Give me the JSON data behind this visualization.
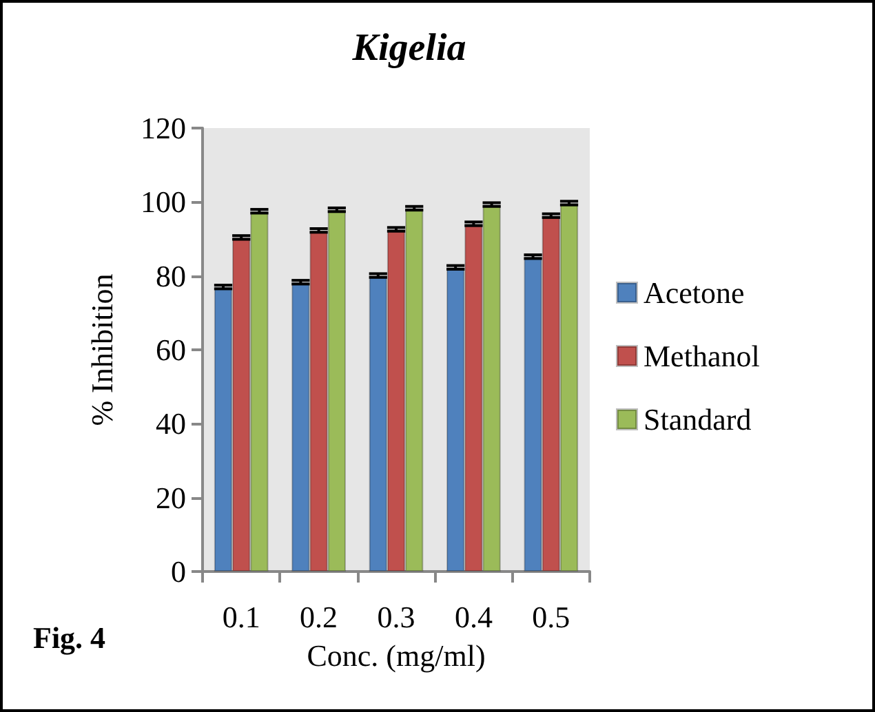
{
  "chart_data": {
    "type": "bar",
    "title": "Kigelia",
    "xlabel": "Conc. (mg/ml)",
    "ylabel": "% Inhibition",
    "annotations": [
      "Fig. 4"
    ],
    "categories": [
      "0.1",
      "0.2",
      "0.3",
      "0.4",
      "0.5"
    ],
    "series": [
      {
        "name": "Acetone",
        "color": "#4f81bd",
        "values": [
          77,
          78.3,
          80.1,
          82.3,
          85.2
        ],
        "errors": [
          0.5,
          0.5,
          0.5,
          0.5,
          0.5
        ]
      },
      {
        "name": "Methanol",
        "color": "#c0504d",
        "values": [
          90.4,
          92.3,
          92.6,
          94.1,
          96.3
        ],
        "errors": [
          0.5,
          0.5,
          0.5,
          0.5,
          0.5
        ]
      },
      {
        "name": "Standard",
        "color": "#9bbb59",
        "values": [
          97.5,
          97.9,
          98.3,
          99.3,
          99.7
        ],
        "errors": [
          0.5,
          0.5,
          0.5,
          0.5,
          0.5
        ]
      }
    ],
    "ylim": [
      0,
      120
    ],
    "yticks": [
      0,
      20,
      40,
      60,
      80,
      100,
      120
    ],
    "grid": false,
    "legend": "right"
  }
}
